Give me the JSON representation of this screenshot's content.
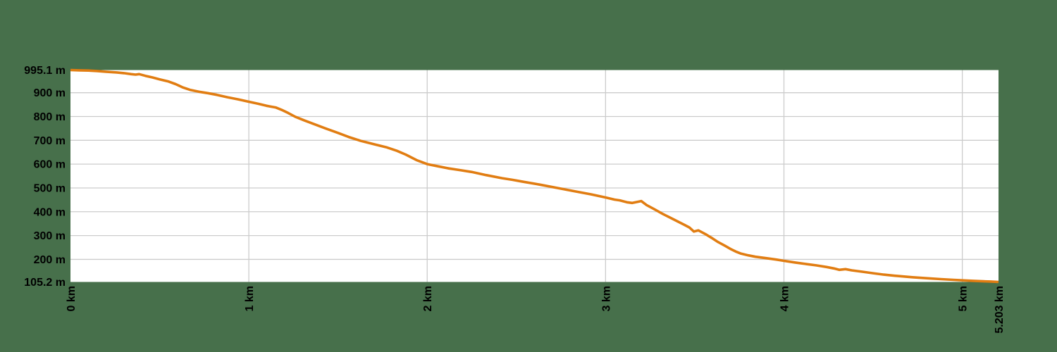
{
  "chart_data": {
    "type": "line",
    "title": "",
    "xlabel": "",
    "ylabel": "",
    "x_unit": "km",
    "y_unit": "m",
    "xlim": [
      0,
      5.203
    ],
    "ylim": [
      105.2,
      995.1
    ],
    "grid": true,
    "legend": false,
    "y_ticks": [
      {
        "value": 995.1,
        "label": "995.1 m"
      },
      {
        "value": 900,
        "label": "900 m"
      },
      {
        "value": 800,
        "label": "800 m"
      },
      {
        "value": 700,
        "label": "700 m"
      },
      {
        "value": 600,
        "label": "600 m"
      },
      {
        "value": 500,
        "label": "500 m"
      },
      {
        "value": 400,
        "label": "400 m"
      },
      {
        "value": 300,
        "label": "300 m"
      },
      {
        "value": 200,
        "label": "200 m"
      },
      {
        "value": 105.2,
        "label": "105.2 m"
      }
    ],
    "x_ticks": [
      {
        "value": 0,
        "label": "0 km"
      },
      {
        "value": 1,
        "label": "1 km"
      },
      {
        "value": 2,
        "label": "2 km"
      },
      {
        "value": 3,
        "label": "3 km"
      },
      {
        "value": 4,
        "label": "4 km"
      },
      {
        "value": 5,
        "label": "5 km"
      },
      {
        "value": 5.203,
        "label": "5.203 km"
      }
    ],
    "y_gridlines": [
      200,
      300,
      400,
      500,
      600,
      700,
      800,
      900
    ],
    "x_gridlines": [
      1,
      2,
      3,
      4,
      5
    ],
    "series": [
      {
        "name": "elevation-profile",
        "points": [
          [
            0,
            995.1
          ],
          [
            0.05,
            994
          ],
          [
            0.1,
            993
          ],
          [
            0.15,
            991
          ],
          [
            0.2,
            988
          ],
          [
            0.26,
            985
          ],
          [
            0.3,
            982
          ],
          [
            0.34,
            978
          ],
          [
            0.365,
            976
          ],
          [
            0.385,
            978
          ],
          [
            0.42,
            971
          ],
          [
            0.46,
            964
          ],
          [
            0.5,
            956
          ],
          [
            0.55,
            947
          ],
          [
            0.59,
            936
          ],
          [
            0.63,
            922
          ],
          [
            0.67,
            912
          ],
          [
            0.72,
            904
          ],
          [
            0.77,
            898
          ],
          [
            0.82,
            891
          ],
          [
            0.88,
            881
          ],
          [
            0.94,
            872
          ],
          [
            1.0,
            862
          ],
          [
            1.05,
            854
          ],
          [
            1.1,
            845
          ],
          [
            1.15,
            838
          ],
          [
            1.19,
            826
          ],
          [
            1.22,
            815
          ],
          [
            1.26,
            799
          ],
          [
            1.31,
            784
          ],
          [
            1.37,
            767
          ],
          [
            1.43,
            750
          ],
          [
            1.5,
            731
          ],
          [
            1.56,
            714
          ],
          [
            1.63,
            697
          ],
          [
            1.7,
            684
          ],
          [
            1.77,
            671
          ],
          [
            1.83,
            656
          ],
          [
            1.88,
            640
          ],
          [
            1.94,
            617
          ],
          [
            2.0,
            600
          ],
          [
            2.06,
            591
          ],
          [
            2.12,
            582
          ],
          [
            2.19,
            574
          ],
          [
            2.25,
            567
          ],
          [
            2.33,
            554
          ],
          [
            2.42,
            541
          ],
          [
            2.48,
            534
          ],
          [
            2.53,
            527
          ],
          [
            2.63,
            514
          ],
          [
            2.73,
            500
          ],
          [
            2.82,
            487
          ],
          [
            2.92,
            473
          ],
          [
            3.0,
            460
          ],
          [
            3.05,
            451
          ],
          [
            3.08,
            448
          ],
          [
            3.12,
            440
          ],
          [
            3.15,
            437
          ],
          [
            3.2,
            445
          ],
          [
            3.23,
            428
          ],
          [
            3.27,
            412
          ],
          [
            3.32,
            391
          ],
          [
            3.36,
            376
          ],
          [
            3.4,
            361
          ],
          [
            3.44,
            346
          ],
          [
            3.47,
            334
          ],
          [
            3.495,
            317
          ],
          [
            3.52,
            322
          ],
          [
            3.56,
            306
          ],
          [
            3.6,
            288
          ],
          [
            3.63,
            273
          ],
          [
            3.67,
            257
          ],
          [
            3.7,
            244
          ],
          [
            3.73,
            233
          ],
          [
            3.76,
            224
          ],
          [
            3.8,
            217
          ],
          [
            3.84,
            211
          ],
          [
            3.9,
            205
          ],
          [
            3.96,
            199
          ],
          [
            4.0,
            194
          ],
          [
            4.06,
            187
          ],
          [
            4.12,
            181
          ],
          [
            4.18,
            175
          ],
          [
            4.24,
            168
          ],
          [
            4.28,
            162
          ],
          [
            4.31,
            156
          ],
          [
            4.345,
            159
          ],
          [
            4.38,
            154
          ],
          [
            4.44,
            148
          ],
          [
            4.5,
            142
          ],
          [
            4.56,
            136
          ],
          [
            4.64,
            130
          ],
          [
            4.72,
            125
          ],
          [
            4.8,
            121
          ],
          [
            4.88,
            117
          ],
          [
            4.95,
            114
          ],
          [
            5.0,
            112
          ],
          [
            5.06,
            110
          ],
          [
            5.12,
            108
          ],
          [
            5.16,
            107
          ],
          [
            5.203,
            105.2
          ]
        ]
      }
    ],
    "colors": {
      "line": "#E17D12",
      "plot_background": "#FFFFFF",
      "gridline": "#CCCCCC",
      "label_text": "#000000",
      "page_background": "#47704B"
    }
  }
}
